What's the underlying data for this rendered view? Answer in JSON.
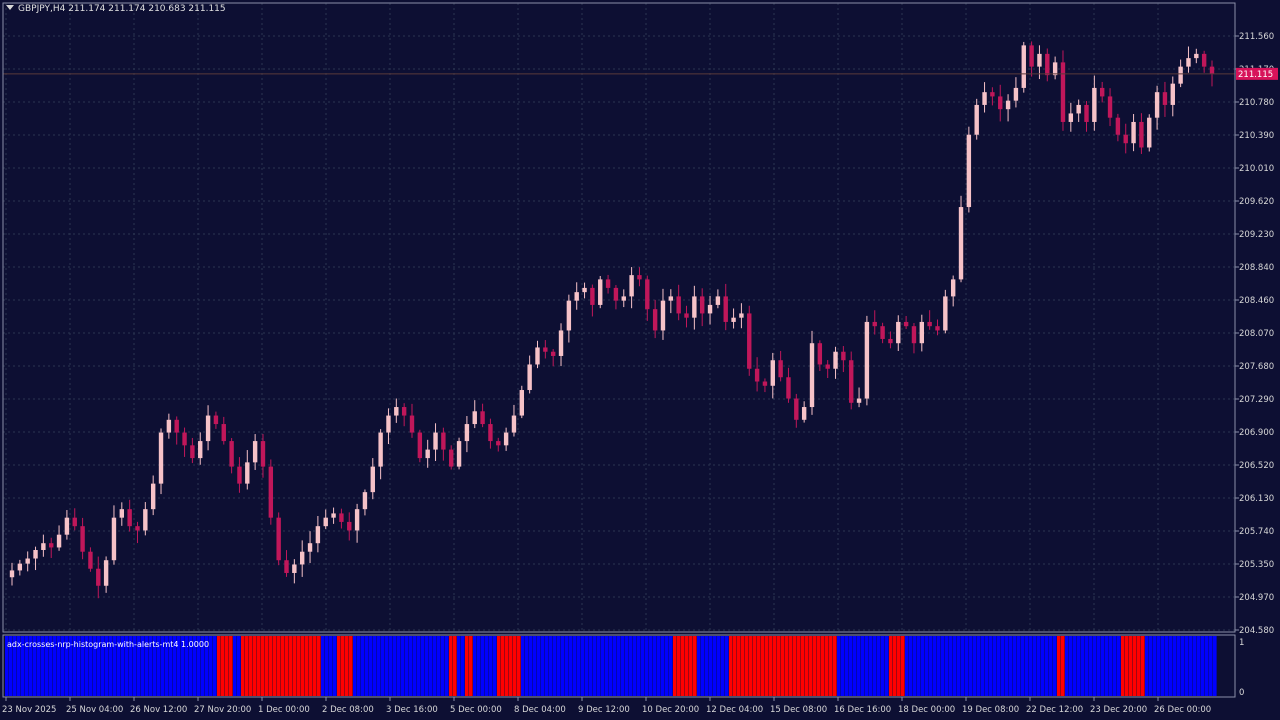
{
  "window": {
    "symbol_timeframe": "GBPJPY,H4",
    "ohlc_readout": "211.174 211.174 210.683 211.115"
  },
  "price_scale": {
    "labels": [
      "211.560",
      "211.170",
      "210.780",
      "210.390",
      "210.010",
      "209.620",
      "209.230",
      "208.840",
      "208.460",
      "208.070",
      "207.680",
      "207.290",
      "206.900",
      "206.520",
      "206.130",
      "205.740",
      "205.350",
      "204.970",
      "204.580"
    ],
    "current_price": "211.115",
    "current_price_color": "#d7135a"
  },
  "indicator": {
    "name": "adx-crosses-nrp-histogram-with-alerts-mt4",
    "value": "1.0000",
    "scale_labels": [
      "1",
      "0"
    ],
    "bar_colors": {
      "up": "#0000ff",
      "down": "#ff0000"
    }
  },
  "time_axis": {
    "labels": [
      "23 Nov 2025",
      "25 Nov 04:00",
      "26 Nov 12:00",
      "27 Nov 20:00",
      "1 Dec 00:00",
      "2 Dec 08:00",
      "3 Dec 16:00",
      "5 Dec 00:00",
      "8 Dec 04:00",
      "9 Dec 12:00",
      "10 Dec 20:00",
      "12 Dec 04:00",
      "15 Dec 08:00",
      "16 Dec 16:00",
      "18 Dec 00:00",
      "19 Dec 08:00",
      "22 Dec 12:00",
      "23 Dec 20:00",
      "26 Dec 00:00"
    ]
  },
  "colors": {
    "background": "#0d0f33",
    "grid": "#2a3450",
    "bull_candle": "#f6c2c8",
    "bear_candle": "#c0175a",
    "axis_text": "#d8d8d8"
  },
  "chart_data": {
    "type": "candlestick",
    "y_axis_range": [
      204.58,
      211.56
    ],
    "candles_close_path": [
      205.28,
      205.36,
      205.42,
      205.52,
      205.6,
      205.55,
      205.7,
      205.9,
      205.8,
      205.5,
      205.3,
      205.1,
      205.4,
      205.9,
      206.0,
      205.8,
      205.75,
      206.0,
      206.3,
      206.9,
      207.05,
      206.9,
      206.75,
      206.6,
      206.8,
      207.1,
      207.0,
      206.8,
      206.5,
      206.3,
      206.55,
      206.8,
      206.5,
      205.9,
      205.4,
      205.25,
      205.35,
      205.5,
      205.6,
      205.8,
      205.9,
      205.95,
      205.85,
      205.75,
      206.0,
      206.2,
      206.5,
      206.9,
      207.1,
      207.2,
      207.1,
      206.9,
      206.6,
      206.7,
      206.9,
      206.7,
      206.5,
      206.8,
      207.0,
      207.15,
      207.0,
      206.8,
      206.75,
      206.9,
      207.1,
      207.4,
      207.7,
      207.9,
      207.85,
      207.8,
      208.1,
      208.45,
      208.55,
      208.6,
      208.4,
      208.7,
      208.6,
      208.45,
      208.5,
      208.75,
      208.7,
      208.35,
      208.1,
      208.45,
      208.5,
      208.3,
      208.25,
      208.5,
      208.3,
      208.4,
      208.5,
      208.2,
      208.25,
      208.3,
      207.65,
      207.5,
      207.45,
      207.75,
      207.55,
      207.3,
      207.05,
      207.2,
      207.95,
      207.7,
      207.65,
      207.85,
      207.75,
      207.25,
      207.3,
      208.2,
      208.15,
      208.0,
      207.95,
      208.2,
      208.15,
      207.95,
      208.2,
      208.15,
      208.1,
      208.5,
      208.7,
      209.55,
      210.4,
      210.75,
      210.9,
      210.85,
      210.7,
      210.8,
      210.95,
      211.45,
      211.2,
      211.35,
      211.1,
      211.25,
      210.55,
      210.65,
      210.75,
      210.55,
      210.95,
      210.85,
      210.6,
      210.4,
      210.3,
      210.55,
      210.25,
      210.6,
      210.9,
      210.75,
      211.0,
      211.2,
      211.3,
      211.35,
      211.2,
      211.115
    ]
  }
}
